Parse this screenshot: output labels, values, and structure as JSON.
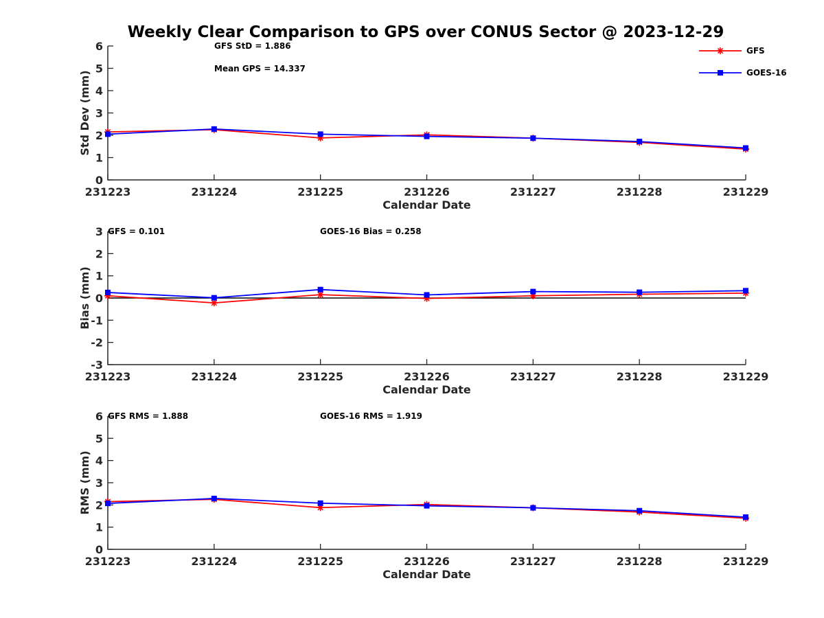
{
  "chart_data": {
    "type": "line",
    "title": "Weekly Clear Comparison to GPS over CONUS Sector @ 2023-12-29",
    "categories": [
      "231223",
      "231224",
      "231225",
      "231226",
      "231227",
      "231228",
      "231229"
    ],
    "legend": {
      "placement": "top-right",
      "entries": [
        {
          "name": "GFS",
          "color": "#ff0000",
          "marker": "asterisk"
        },
        {
          "name": "GOES-16",
          "color": "#0000ff",
          "marker": "square"
        }
      ]
    },
    "panels": [
      {
        "id": "std",
        "ylabel": "Std Dev (mm)",
        "xlabel": "Calendar Date",
        "ylim": [
          0,
          6
        ],
        "yticks": [
          "0",
          "1",
          "2",
          "3",
          "4",
          "5",
          "6"
        ],
        "zero_line": false,
        "annotations": [
          "GFS StD = 1.886",
          "Mean GPS = 14.337"
        ],
        "series": [
          {
            "name": "GFS",
            "color": "#ff0000",
            "values": [
              2.15,
              2.25,
              1.88,
              2.02,
              1.87,
              1.68,
              1.38
            ]
          },
          {
            "name": "GOES-16",
            "color": "#0000ff",
            "values": [
              2.05,
              2.28,
              2.05,
              1.95,
              1.87,
              1.72,
              1.43
            ]
          }
        ]
      },
      {
        "id": "bias",
        "ylabel": "Bias (mm)",
        "xlabel": "Calendar Date",
        "ylim": [
          -3,
          3
        ],
        "yticks": [
          "-3",
          "-2",
          "-1",
          "0",
          "1",
          "2",
          "3"
        ],
        "zero_line": true,
        "annotations": [
          "GFS = 0.101",
          "GOES-16 Bias  = 0.258"
        ],
        "series": [
          {
            "name": "GFS",
            "color": "#ff0000",
            "values": [
              0.1,
              -0.22,
              0.15,
              -0.02,
              0.1,
              0.17,
              0.22
            ]
          },
          {
            "name": "GOES-16",
            "color": "#0000ff",
            "values": [
              0.25,
              0.01,
              0.38,
              0.14,
              0.29,
              0.26,
              0.33
            ]
          }
        ]
      },
      {
        "id": "rms",
        "ylabel": "RMS (mm)",
        "xlabel": "Calendar Date",
        "ylim": [
          0,
          6
        ],
        "yticks": [
          "0",
          "1",
          "2",
          "3",
          "4",
          "5",
          "6"
        ],
        "zero_line": false,
        "annotations": [
          "GFS RMS = 1.888",
          "GOES-16 RMS = 1.919"
        ],
        "series": [
          {
            "name": "GFS",
            "color": "#ff0000",
            "values": [
              2.15,
              2.25,
              1.88,
              2.02,
              1.87,
              1.68,
              1.4
            ]
          },
          {
            "name": "GOES-16",
            "color": "#0000ff",
            "values": [
              2.07,
              2.29,
              2.08,
              1.96,
              1.87,
              1.74,
              1.45
            ]
          }
        ]
      }
    ]
  }
}
